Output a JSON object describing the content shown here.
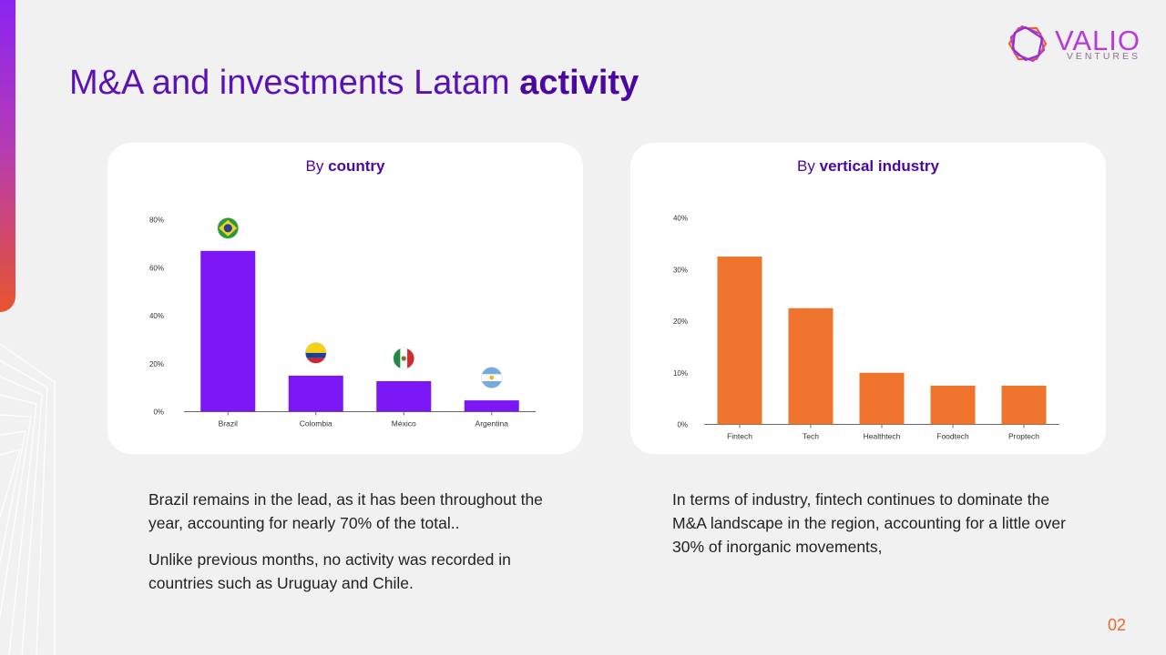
{
  "brand": {
    "name": "VALIO",
    "tagline": "VENTURES",
    "colors": {
      "purple": "#7b17f5",
      "orange": "#ef742d",
      "title_purple": "#5a11b8",
      "page_number": "#e8672b"
    }
  },
  "title": {
    "regular": "M&A and investments Latam ",
    "bold": "activity"
  },
  "charts": {
    "country": {
      "title_prefix": "By ",
      "title_bold": "country"
    },
    "industry": {
      "title_prefix": "By ",
      "title_bold": "vertical industry"
    }
  },
  "chart_data": [
    {
      "type": "bar",
      "title": "By country",
      "categories": [
        "Brazil",
        "Colombia",
        "México",
        "Argentina"
      ],
      "values": [
        67,
        15,
        12.7,
        4.7
      ],
      "unit": "%",
      "ylim": [
        0,
        80
      ],
      "yticks": [
        0,
        20,
        40,
        60,
        80
      ],
      "ytick_labels": [
        "0%",
        "20%",
        "40%",
        "60%",
        "80%"
      ],
      "color": "#7b17f5",
      "bar_icons": [
        "brazil-flag-icon",
        "colombia-flag-icon",
        "mexico-flag-icon",
        "argentina-flag-icon"
      ],
      "grid": false,
      "legend": "none"
    },
    {
      "type": "bar",
      "title": "By vertical industry",
      "categories": [
        "Fintech",
        "Tech",
        "Healthtech",
        "Foodtech",
        "Proptech"
      ],
      "values": [
        32.5,
        22.5,
        10,
        7.5,
        7.5
      ],
      "unit": "%",
      "ylim": [
        0,
        40
      ],
      "yticks": [
        0,
        10,
        20,
        30,
        40
      ],
      "ytick_labels": [
        "0%",
        "10%",
        "20%",
        "30%",
        "40%"
      ],
      "color": "#ef742d",
      "grid": false,
      "legend": "none"
    }
  ],
  "text": {
    "left": [
      "Brazil remains in the lead, as it has been throughout the year, accounting for nearly 70% of the total..",
      "Unlike previous months, no activity was recorded in countries such as Uruguay and Chile."
    ],
    "right": [
      "In terms of industry, fintech continues to dominate the M&A landscape in the region, accounting for a little over 30% of inorganic movements,"
    ]
  },
  "page_number": "02"
}
